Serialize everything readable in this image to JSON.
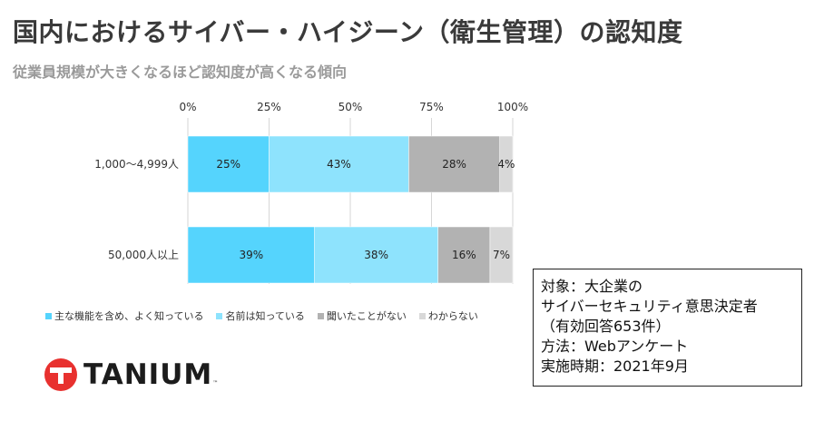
{
  "title": "国内におけるサイバー・ハイジーン（衛生管理）の認知度",
  "subtitle": "従業員規模が大きくなるほど認知度が高くなる傾向",
  "chart_data": {
    "type": "bar",
    "orientation": "horizontal",
    "stacked": true,
    "categories": [
      "1,000〜4,999人",
      "50,000人以上"
    ],
    "series": [
      {
        "name": "主な機能を含め、よく知っている",
        "color": "#55d4fd",
        "values": [
          25,
          39
        ]
      },
      {
        "name": "名前は知っている",
        "color": "#8ee3fd",
        "values": [
          43,
          38
        ]
      },
      {
        "name": "聞いたことがない",
        "color": "#b2b2b2",
        "values": [
          28,
          16
        ]
      },
      {
        "name": "わからない",
        "color": "#d8d8d8",
        "values": [
          4,
          7
        ]
      }
    ],
    "xlim": [
      0,
      100
    ],
    "xticks": [
      "0%",
      "25%",
      "50%",
      "75%",
      "100%"
    ],
    "xtick_values": [
      0,
      25,
      50,
      75,
      100
    ],
    "value_suffix": "%",
    "grid": true,
    "legend_position": "bottom-left"
  },
  "note": {
    "lines": [
      "対象：大企業の",
      "サイバーセキュリティ意思決定者",
      "（有効回答653件）",
      "方法：Webアンケート",
      "実施時期：2021年9月"
    ]
  },
  "logo": {
    "text": "TANIUM",
    "tm": "™",
    "color": "#e8312f"
  }
}
